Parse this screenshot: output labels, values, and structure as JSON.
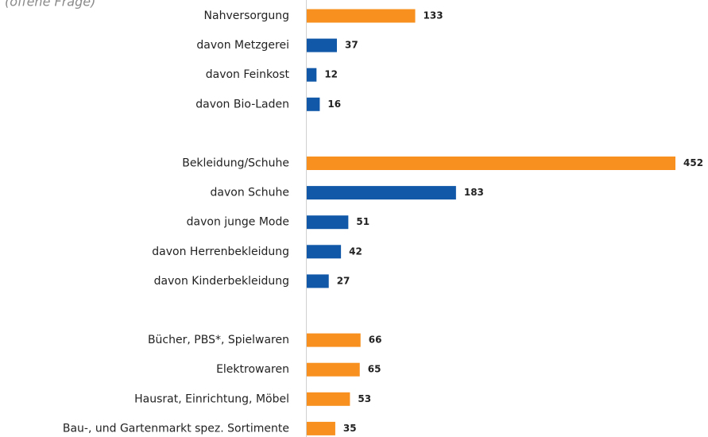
{
  "chart_data": {
    "type": "bar",
    "orientation": "horizontal",
    "subtitle": "(offene Frage)",
    "categories": [
      "Nahversorgung",
      "davon Metzgerei",
      "davon Feinkost",
      "davon Bio-Laden",
      null,
      "Bekleidung/Schuhe",
      "davon Schuhe",
      "davon junge Mode",
      "davon Herrenbekleidung",
      "davon Kinderbekleidung",
      null,
      "Bücher, PBS*, Spielwaren",
      "Elektrowaren",
      "Hausrat, Einrichtung, Möbel",
      "Bau-, und Gartenmarkt spez. Sortimente"
    ],
    "values": [
      133,
      37,
      12,
      16,
      null,
      452,
      183,
      51,
      42,
      27,
      null,
      66,
      65,
      53,
      35
    ],
    "colors": [
      "#f7901e",
      "#1158a8",
      "#1158a8",
      "#1158a8",
      null,
      "#f7901e",
      "#1158a8",
      "#1158a8",
      "#1158a8",
      "#1158a8",
      null,
      "#f7901e",
      "#f7901e",
      "#f7901e",
      "#f7901e"
    ]
  }
}
